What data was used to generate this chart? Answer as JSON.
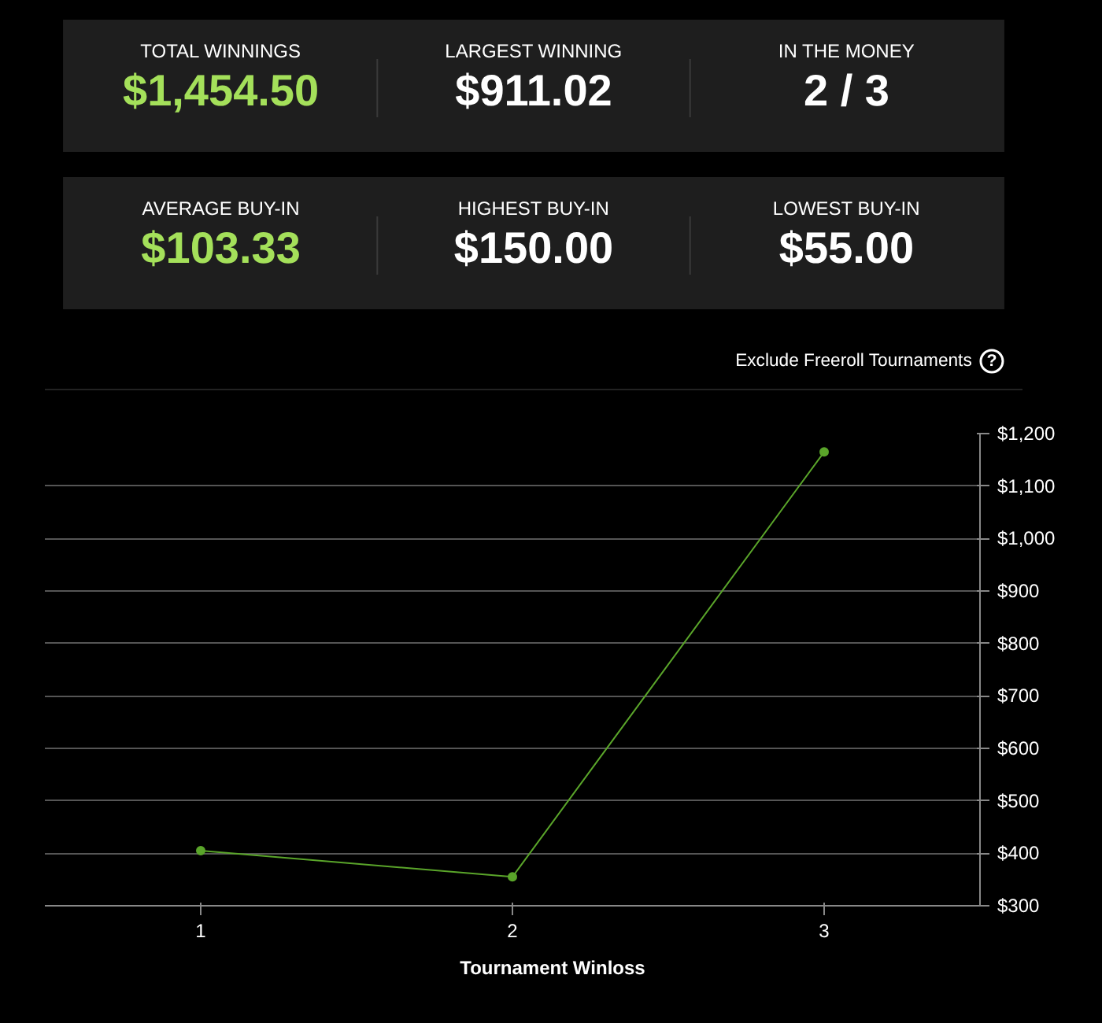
{
  "chart_data": [
    {
      "type": "other",
      "annotations": [
        "TOTAL WINNINGS",
        "$1,454.50",
        "LARGEST WINNING",
        "$911.02",
        "IN THE MONEY",
        "2 / 3",
        "AVERAGE BUY-IN",
        "$103.33",
        "HIGHEST BUY-IN",
        "$150.00",
        "LOWEST BUY-IN",
        "$55.00",
        "Exclude Freeroll Tournaments",
        "?"
      ],
      "colors": [
        "#a4e05a",
        "#ffffff",
        "#ffffff",
        "#a4e05a",
        "#ffffff",
        "#ffffff"
      ]
    },
    {
      "type": "line",
      "categories": [
        "1",
        "2",
        "3"
      ],
      "series": [
        {
          "name": "Tournament Winloss",
          "color": "#5aa52a",
          "values": [
            405,
            355,
            1165
          ]
        }
      ],
      "ylim": [
        300,
        1200
      ],
      "yticks": [
        {
          "value": 300,
          "label": "$300"
        },
        {
          "value": 400,
          "label": "$400"
        },
        {
          "value": 500,
          "label": "$500"
        },
        {
          "value": 600,
          "label": "$600"
        },
        {
          "value": 700,
          "label": "$700"
        },
        {
          "value": 800,
          "label": "$800"
        },
        {
          "value": 900,
          "label": "$900"
        },
        {
          "value": 1000,
          "label": "$1,000"
        },
        {
          "value": 1100,
          "label": "$1,100"
        },
        {
          "value": 1200,
          "label": "$1,200"
        }
      ],
      "grid": "y",
      "legend": "bottom",
      "marker": "circle",
      "line_style": "solid"
    }
  ]
}
